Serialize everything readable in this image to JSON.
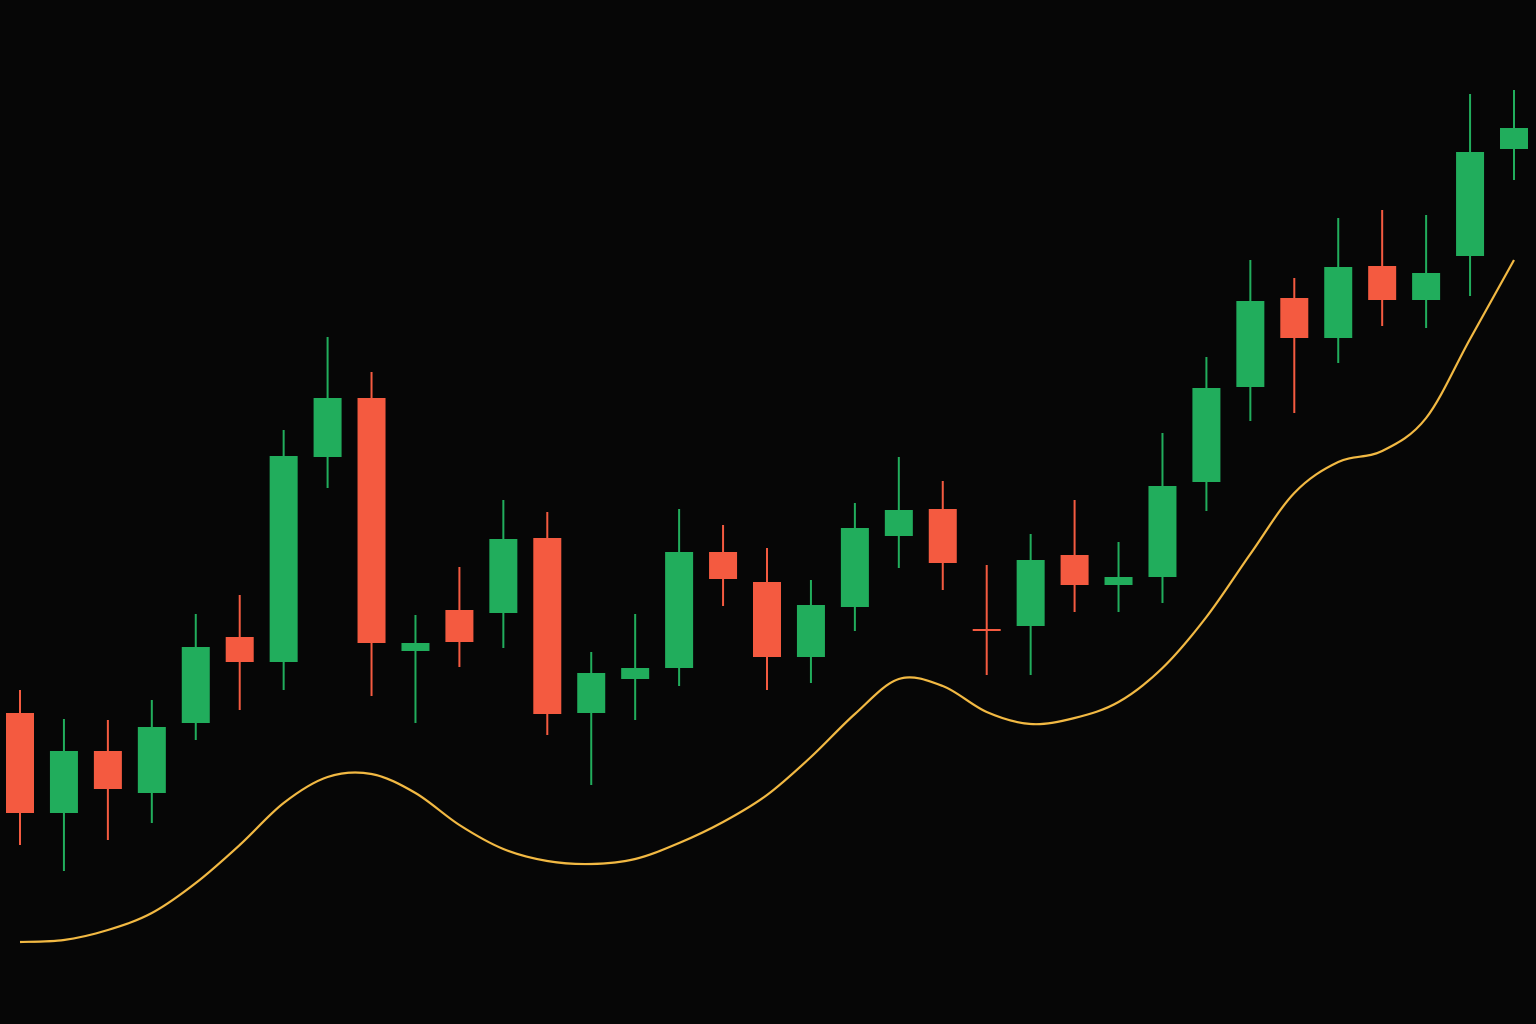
{
  "chart_data": {
    "type": "candlestick",
    "ylim": [
      0,
      1024
    ],
    "up_color": "#21ad5c",
    "down_color": "#f45a40",
    "series": [
      {
        "open": [
          311,
          211,
          273,
          231,
          301,
          387,
          362,
          567,
          626,
          373,
          414,
          411,
          486,
          311,
          345,
          356,
          472,
          442,
          367,
          417,
          488,
          515,
          395,
          398,
          469,
          439,
          447,
          542,
          637,
          726,
          686,
          758,
          724,
          768,
          875
        ],
        "high": [
          334,
          305,
          304,
          324,
          410,
          429,
          594,
          687,
          652,
          409,
          457,
          524,
          512,
          372,
          410,
          515,
          499,
          476,
          444,
          521,
          567,
          543,
          459,
          490,
          524,
          482,
          591,
          667,
          764,
          746,
          806,
          814,
          809,
          930,
          934
        ],
        "low": [
          179,
          153,
          184,
          201,
          284,
          314,
          334,
          536,
          328,
          301,
          357,
          376,
          289,
          239,
          304,
          338,
          418,
          334,
          341,
          393,
          456,
          434,
          349,
          349,
          412,
          412,
          421,
          513,
          603,
          611,
          661,
          698,
          696,
          728,
          844
        ],
        "close": [
          211,
          273,
          235,
          297,
          377,
          362,
          568,
          626,
          381,
          381,
          382,
          485,
          310,
          351,
          356,
          472,
          445,
          367,
          419,
          496,
          514,
          461,
          393,
          464,
          439,
          447,
          538,
          636,
          723,
          686,
          757,
          724,
          751,
          872,
          896
        ]
      },
      {
        "type": "line",
        "color": "#f2b943",
        "values": [
          82,
          84,
          94,
          111,
          141,
          179,
          221,
          247,
          250,
          231,
          199,
          175,
          163,
          160,
          165,
          181,
          202,
          229,
          267,
          310,
          345,
          338,
          312,
          300,
          306,
          322,
          356,
          407,
          470,
          531,
          562,
          573,
          606,
          685,
          764
        ]
      }
    ]
  }
}
